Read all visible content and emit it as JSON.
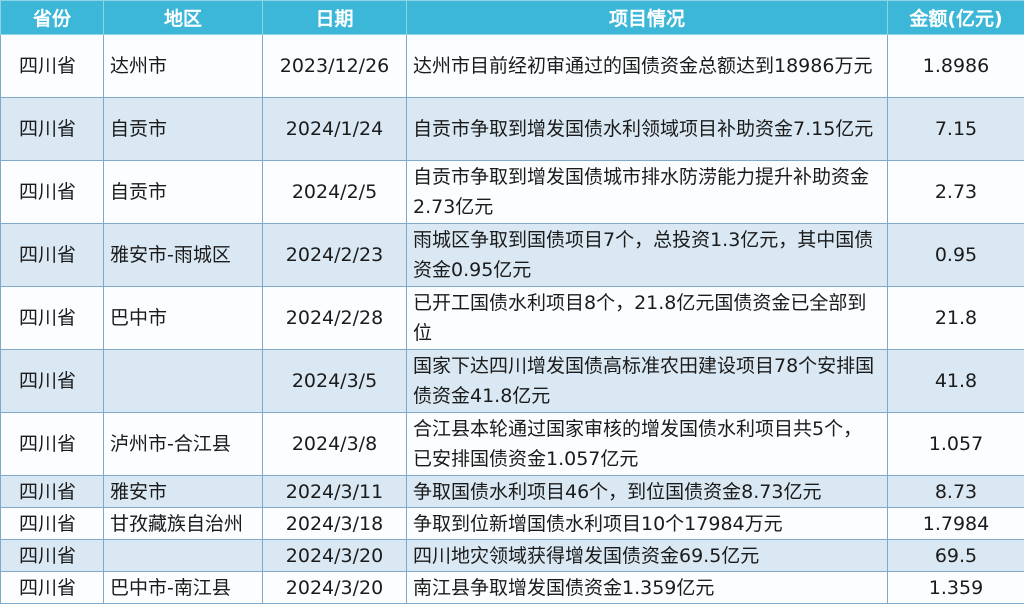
{
  "headers": [
    "省份",
    "地区",
    "日期",
    "项目情况",
    "金额(亿元)"
  ],
  "rows": [
    {
      "province": "四川省",
      "region": "达州市",
      "date": "2023/12/26",
      "project": "达州市目前经初审通过的国债资金总额达到18986万元",
      "amount": "1.8986"
    },
    {
      "province": "四川省",
      "region": "自贡市",
      "date": "2024/1/24",
      "project": "自贡市争取到增发国债水利领域项目补助资金7.15亿元",
      "amount": "7.15"
    },
    {
      "province": "四川省",
      "region": "自贡市",
      "date": "2024/2/5",
      "project": "自贡市争取到增发国债城市排水防涝能力提升补助资金2.73亿元",
      "amount": "2.73"
    },
    {
      "province": "四川省",
      "region": "雅安市-雨城区",
      "date": "2024/2/23",
      "project": "雨城区争取到国债项目7个，总投资1.3亿元，其中国债资金0.95亿元",
      "amount": "0.95"
    },
    {
      "province": "四川省",
      "region": "巴中市",
      "date": "2024/2/28",
      "project": "已开工国债水利项目8个，21.8亿元国债资金已全部到位",
      "amount": "21.8"
    },
    {
      "province": "四川省",
      "region": "",
      "date": "2024/3/5",
      "project": "国家下达四川增发国债高标准农田建设项目78个安排国债资金41.8亿元",
      "amount": "41.8"
    },
    {
      "province": "四川省",
      "region": "泸州市-合江县",
      "date": "2024/3/8",
      "project": "合江县本轮通过国家审核的增发国债水利项目共5个，已安排国债资金1.057亿元",
      "amount": "1.057"
    },
    {
      "province": "四川省",
      "region": "雅安市",
      "date": "2024/3/11",
      "project": "争取国债水利项目46个，到位国债资金8.73亿元",
      "amount": "8.73"
    },
    {
      "province": "四川省",
      "region": "甘孜藏族自治州",
      "date": "2024/3/18",
      "project": "争取到位新增国债水利项目10个17984万元",
      "amount": "1.7984"
    },
    {
      "province": "四川省",
      "region": "",
      "date": "2024/3/20",
      "project": "四川地灾领域获得增发国债资金69.5亿元",
      "amount": "69.5"
    },
    {
      "province": "四川省",
      "region": "巴中市-南江县",
      "date": "2024/3/20",
      "project": "南江县争取增发国债资金1.359亿元",
      "amount": "1.359"
    }
  ],
  "colors": {
    "header": "#3db7d8",
    "row_alt": "#d9e8f3",
    "border": "#7fa9c8"
  }
}
